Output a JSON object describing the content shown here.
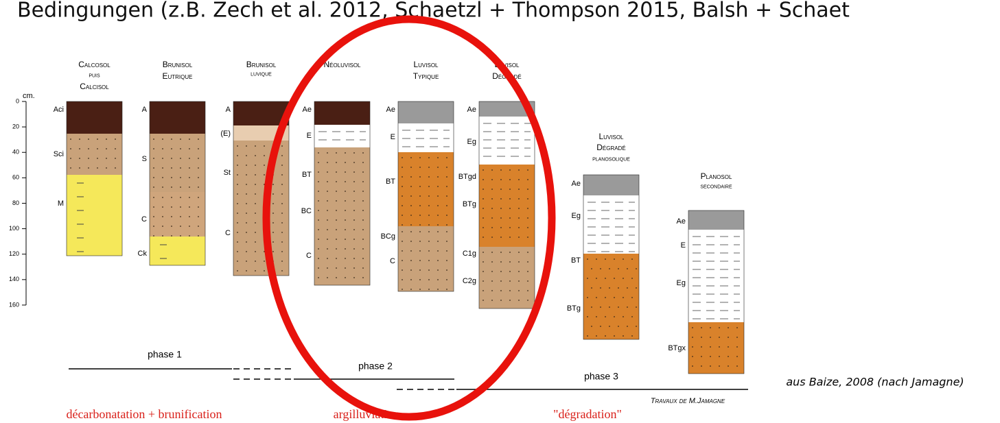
{
  "header": {
    "text": "Bedingungen (z.B. Zech et al. 2012, Schaetzl + Thompson 2015, Balsh + Schaet"
  },
  "depth_axis": {
    "unit": "cm.",
    "ticks": [
      0,
      20,
      40,
      60,
      80,
      100,
      120,
      140,
      160
    ]
  },
  "profiles": [
    {
      "name": [
        "Calcosol",
        "puis",
        "Calcisol"
      ],
      "horizons": [
        "Aci",
        "Sci",
        "M"
      ]
    },
    {
      "name": [
        "Brunisol",
        "Eutrique"
      ],
      "horizons": [
        "A",
        "S",
        "C",
        "Ck"
      ]
    },
    {
      "name": [
        "Brunisol",
        "luvique"
      ],
      "horizons": [
        "A",
        "(E)",
        "St",
        "C"
      ]
    },
    {
      "name": [
        "Néoluvisol"
      ],
      "horizons": [
        "Ae",
        "E",
        "BT",
        "BC",
        "C"
      ]
    },
    {
      "name": [
        "Luvisol",
        "Typique"
      ],
      "horizons": [
        "Ae",
        "E",
        "BT",
        "BCg",
        "C"
      ]
    },
    {
      "name": [
        "Luvisol",
        "Dégradé"
      ],
      "horizons": [
        "Ae",
        "Eg",
        "BTgd",
        "BTg",
        "C1g",
        "C2g"
      ]
    },
    {
      "name": [
        "Luvisol",
        "Dégradé",
        "planosolique"
      ],
      "horizons": [
        "Ae",
        "Eg",
        "BT",
        "BTg"
      ]
    },
    {
      "name": [
        "Planosol",
        "secondaire"
      ],
      "horizons": [
        "Ae",
        "E",
        "Eg",
        "BTgx"
      ]
    }
  ],
  "phases": [
    "phase 1",
    "phase 2",
    "phase 3"
  ],
  "processes": [
    "décarbonatation + brunification",
    "argilluviation",
    "\"dégradation\""
  ],
  "credit": "Travaux de M.Jamagne",
  "source": "aus Baize, 2008 (nach Jamagne)"
}
